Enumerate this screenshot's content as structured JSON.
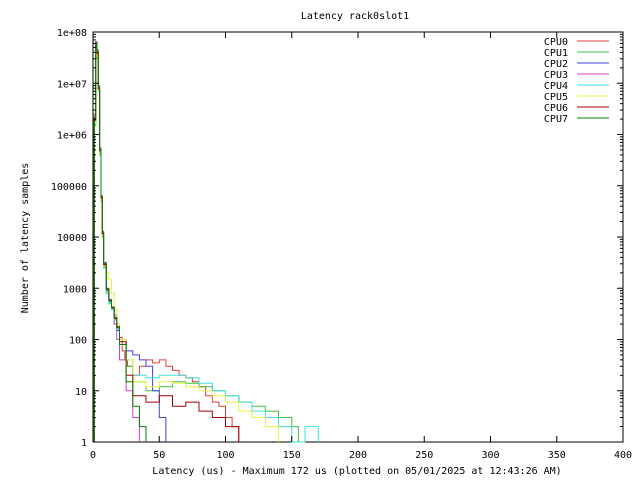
{
  "chart_data": {
    "type": "line",
    "title": "Latency rack0slot1",
    "xlabel": "Latency (us) - Maximum 172 us (plotted on 05/01/2025 at 12:43:26 AM)",
    "ylabel": "Number of latency samples",
    "xlim": [
      0,
      400
    ],
    "ylim": [
      1,
      100000000
    ],
    "yscale": "log",
    "x_ticks": [
      "0",
      "50",
      "100",
      "150",
      "200",
      "250",
      "300",
      "350",
      "400"
    ],
    "y_ticks": [
      "1",
      "10",
      "100",
      "1000",
      "10000",
      "100000",
      "1e+06",
      "1e+07",
      "1e+08"
    ],
    "grid": false,
    "legend_position": "top-right",
    "series": [
      {
        "name": "CPU0",
        "color": "#e04040",
        "points": [
          [
            0,
            1
          ],
          [
            1,
            2000000
          ],
          [
            2,
            60000000
          ],
          [
            3,
            40000000
          ],
          [
            4,
            8000000
          ],
          [
            5,
            500000
          ],
          [
            6,
            60000
          ],
          [
            7,
            12000
          ],
          [
            8,
            3000
          ],
          [
            10,
            900
          ],
          [
            12,
            600
          ],
          [
            14,
            400
          ],
          [
            16,
            250
          ],
          [
            18,
            200
          ],
          [
            20,
            110
          ],
          [
            22,
            60
          ],
          [
            24,
            40
          ],
          [
            26,
            30
          ],
          [
            30,
            20
          ],
          [
            35,
            30
          ],
          [
            40,
            40
          ],
          [
            45,
            35
          ],
          [
            50,
            40
          ],
          [
            55,
            30
          ],
          [
            60,
            25
          ],
          [
            65,
            20
          ],
          [
            70,
            18
          ],
          [
            75,
            15
          ],
          [
            80,
            12
          ],
          [
            85,
            8
          ],
          [
            90,
            6
          ],
          [
            95,
            5
          ],
          [
            100,
            3
          ],
          [
            105,
            2
          ],
          [
            110,
            1
          ]
        ]
      },
      {
        "name": "CPU1",
        "color": "#40c040",
        "points": [
          [
            0,
            1
          ],
          [
            1,
            1500000
          ],
          [
            2,
            50000000
          ],
          [
            3,
            30000000
          ],
          [
            4,
            7000000
          ],
          [
            5,
            400000
          ],
          [
            6,
            50000
          ],
          [
            7,
            10000
          ],
          [
            8,
            2500
          ],
          [
            10,
            800
          ],
          [
            12,
            500
          ],
          [
            14,
            400
          ],
          [
            16,
            200
          ],
          [
            18,
            150
          ],
          [
            20,
            100
          ],
          [
            25,
            30
          ],
          [
            30,
            15
          ],
          [
            40,
            10
          ],
          [
            50,
            12
          ],
          [
            60,
            15
          ],
          [
            70,
            14
          ],
          [
            80,
            12
          ],
          [
            90,
            10
          ],
          [
            100,
            8
          ],
          [
            110,
            6
          ],
          [
            120,
            5
          ],
          [
            130,
            4
          ],
          [
            140,
            3
          ],
          [
            150,
            2
          ],
          [
            155,
            1
          ]
        ]
      },
      {
        "name": "CPU2",
        "color": "#4040e0",
        "points": [
          [
            0,
            1
          ],
          [
            1,
            1800000
          ],
          [
            2,
            55000000
          ],
          [
            3,
            35000000
          ],
          [
            4,
            7500000
          ],
          [
            5,
            450000
          ],
          [
            6,
            55000
          ],
          [
            7,
            11000
          ],
          [
            8,
            2800
          ],
          [
            10,
            900
          ],
          [
            12,
            550
          ],
          [
            14,
            400
          ],
          [
            16,
            300
          ],
          [
            18,
            150
          ],
          [
            20,
            100
          ],
          [
            25,
            60
          ],
          [
            30,
            50
          ],
          [
            35,
            40
          ],
          [
            40,
            30
          ],
          [
            45,
            10
          ],
          [
            50,
            3
          ],
          [
            55,
            1
          ]
        ]
      },
      {
        "name": "CPU3",
        "color": "#d040d0",
        "points": [
          [
            0,
            1
          ],
          [
            1,
            2500000
          ],
          [
            2,
            65000000
          ],
          [
            3,
            45000000
          ],
          [
            4,
            9000000
          ],
          [
            5,
            550000
          ],
          [
            6,
            65000
          ],
          [
            7,
            13000
          ],
          [
            8,
            3200
          ],
          [
            10,
            1000
          ],
          [
            12,
            600
          ],
          [
            14,
            400
          ],
          [
            16,
            200
          ],
          [
            18,
            100
          ],
          [
            20,
            40
          ],
          [
            25,
            10
          ],
          [
            30,
            3
          ],
          [
            35,
            1
          ]
        ]
      },
      {
        "name": "CPU4",
        "color": "#40e0e0",
        "points": [
          [
            0,
            1
          ],
          [
            1,
            1600000
          ],
          [
            2,
            52000000
          ],
          [
            3,
            32000000
          ],
          [
            4,
            7200000
          ],
          [
            5,
            420000
          ],
          [
            6,
            52000
          ],
          [
            7,
            10500
          ],
          [
            8,
            2600
          ],
          [
            10,
            850
          ],
          [
            12,
            520
          ],
          [
            14,
            380
          ],
          [
            16,
            240
          ],
          [
            18,
            160
          ],
          [
            20,
            100
          ],
          [
            25,
            40
          ],
          [
            30,
            20
          ],
          [
            40,
            18
          ],
          [
            50,
            20
          ],
          [
            60,
            20
          ],
          [
            70,
            18
          ],
          [
            80,
            14
          ],
          [
            90,
            10
          ],
          [
            100,
            8
          ],
          [
            110,
            6
          ],
          [
            120,
            4
          ],
          [
            130,
            3
          ],
          [
            140,
            2
          ],
          [
            150,
            1
          ],
          [
            160,
            2
          ],
          [
            170,
            1
          ]
        ]
      },
      {
        "name": "CPU5",
        "color": "#f0f040",
        "points": [
          [
            0,
            1
          ],
          [
            1,
            1700000
          ],
          [
            2,
            53000000
          ],
          [
            3,
            33000000
          ],
          [
            4,
            7300000
          ],
          [
            5,
            430000
          ],
          [
            6,
            53000
          ],
          [
            7,
            10800
          ],
          [
            8,
            2700
          ],
          [
            10,
            2000
          ],
          [
            12,
            1500
          ],
          [
            14,
            800
          ],
          [
            16,
            400
          ],
          [
            18,
            200
          ],
          [
            20,
            100
          ],
          [
            25,
            40
          ],
          [
            30,
            15
          ],
          [
            40,
            12
          ],
          [
            50,
            15
          ],
          [
            60,
            14
          ],
          [
            70,
            12
          ],
          [
            80,
            10
          ],
          [
            90,
            8
          ],
          [
            100,
            6
          ],
          [
            110,
            4
          ],
          [
            120,
            3
          ],
          [
            130,
            2
          ],
          [
            140,
            1
          ]
        ]
      },
      {
        "name": "CPU6",
        "color": "#a00000",
        "points": [
          [
            0,
            1
          ],
          [
            1,
            1900000
          ],
          [
            2,
            58000000
          ],
          [
            3,
            38000000
          ],
          [
            4,
            7800000
          ],
          [
            5,
            480000
          ],
          [
            6,
            58000
          ],
          [
            7,
            11500
          ],
          [
            8,
            2900
          ],
          [
            10,
            950
          ],
          [
            12,
            580
          ],
          [
            14,
            420
          ],
          [
            16,
            260
          ],
          [
            18,
            170
          ],
          [
            20,
            90
          ],
          [
            25,
            20
          ],
          [
            30,
            8
          ],
          [
            40,
            6
          ],
          [
            50,
            8
          ],
          [
            60,
            5
          ],
          [
            70,
            6
          ],
          [
            80,
            4
          ],
          [
            90,
            3
          ],
          [
            100,
            2
          ],
          [
            110,
            1
          ]
        ]
      },
      {
        "name": "CPU7",
        "color": "#008000",
        "points": [
          [
            0,
            1
          ],
          [
            1,
            2100000
          ],
          [
            2,
            62000000
          ],
          [
            3,
            42000000
          ],
          [
            4,
            8500000
          ],
          [
            5,
            520000
          ],
          [
            6,
            62000
          ],
          [
            7,
            12500
          ],
          [
            8,
            3100
          ],
          [
            10,
            980
          ],
          [
            12,
            600
          ],
          [
            14,
            430
          ],
          [
            16,
            270
          ],
          [
            18,
            180
          ],
          [
            20,
            80
          ],
          [
            25,
            15
          ],
          [
            30,
            5
          ],
          [
            35,
            2
          ],
          [
            40,
            1
          ]
        ]
      }
    ]
  }
}
